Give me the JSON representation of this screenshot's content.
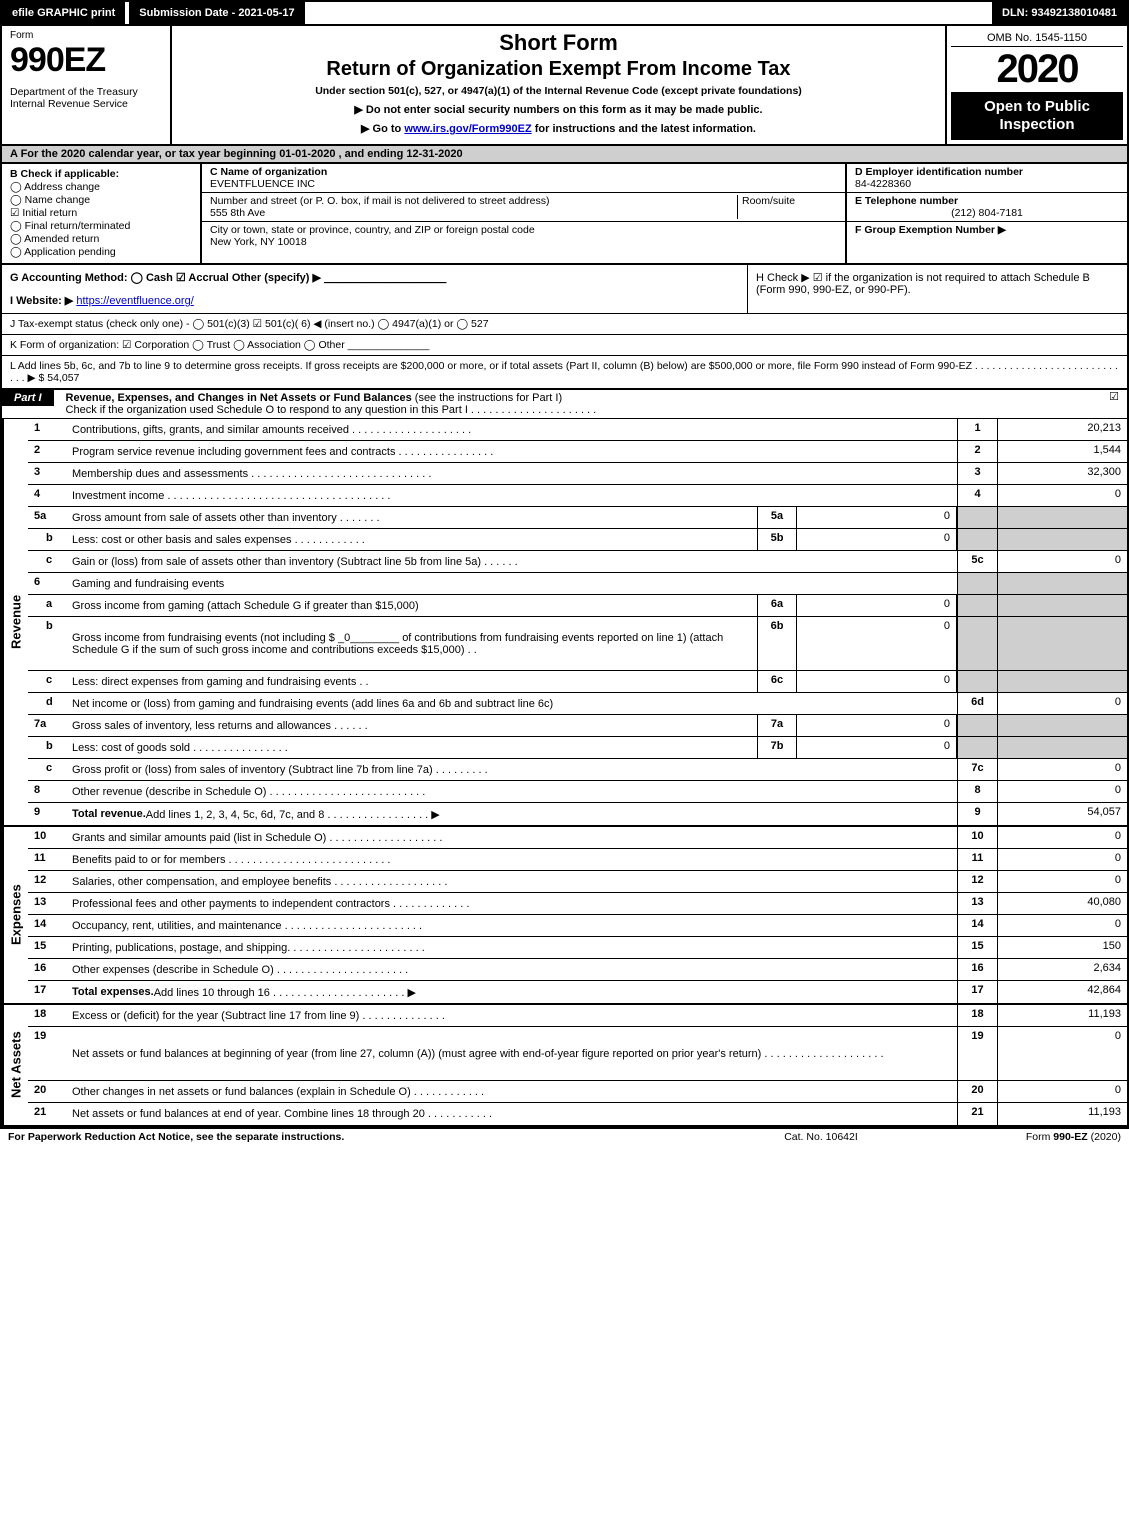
{
  "topbar": {
    "efile": "efile GRAPHIC print",
    "submission": "Submission Date - 2021-05-17",
    "dln": "DLN: 93492138010481"
  },
  "header": {
    "form_word": "Form",
    "form_code": "990EZ",
    "dept1": "Department of the Treasury",
    "dept2": "Internal Revenue Service",
    "title1": "Short Form",
    "title2": "Return of Organization Exempt From Income Tax",
    "under": "Under section 501(c), 527, or 4947(a)(1) of the Internal Revenue Code (except private foundations)",
    "warn": "▶ Do not enter social security numbers on this form as it may be made public.",
    "goto_pre": "▶ Go to ",
    "goto_link": "www.irs.gov/Form990EZ",
    "goto_post": " for instructions and the latest information.",
    "omb": "OMB No. 1545-1150",
    "year": "2020",
    "open": "Open to Public Inspection"
  },
  "row_a": "A  For the 2020 calendar year, or tax year beginning 01-01-2020 , and ending 12-31-2020",
  "section_b": {
    "label": "B  Check if applicable:",
    "items": [
      "Address change",
      "Name change",
      "Initial return",
      "Final return/terminated",
      "Amended return",
      "Application pending"
    ],
    "checked_index": 2
  },
  "section_c": {
    "name_label": "C Name of organization",
    "name": "EVENTFLUENCE INC",
    "street_label": "Number and street (or P. O. box, if mail is not delivered to street address)",
    "room_label": "Room/suite",
    "street": "555 8th Ave",
    "city_label": "City or town, state or province, country, and ZIP or foreign postal code",
    "city": "New York, NY  10018"
  },
  "section_d": {
    "ein_label": "D Employer identification number",
    "ein": "84-4228360",
    "tel_label": "E Telephone number",
    "tel": "(212) 804-7181",
    "grp_label": "F Group Exemption Number   ▶"
  },
  "row_g": {
    "label": "G Accounting Method:   ◯ Cash   ☑ Accrual   Other (specify) ▶",
    "line": "____________________"
  },
  "row_h": "H   Check ▶  ☑  if the organization is not required to attach Schedule B (Form 990, 990-EZ, or 990-PF).",
  "row_i_label": "I Website: ▶",
  "row_i_link": "https://eventfluence.org/",
  "row_j": "J Tax-exempt status (check only one) -  ◯ 501(c)(3)  ☑ 501(c)( 6) ◀ (insert no.)  ◯ 4947(a)(1) or  ◯ 527",
  "row_k": "K Form of organization:   ☑ Corporation   ◯ Trust   ◯ Association   ◯ Other  ______________",
  "row_l": "L Add lines 5b, 6c, and 7b to line 9 to determine gross receipts. If gross receipts are $200,000 or more, or if total assets (Part II, column (B) below) are $500,000 or more, file Form 990 instead of Form 990-EZ  .  .  .  .  .  .  .  .  .  .  .  .  .  .  .  .  .  .  .  .  .  .  .  .  .  .  .  .   ▶ $ 54,057",
  "part1": {
    "label": "Part I",
    "desc_bold": "Revenue, Expenses, and Changes in Net Assets or Fund Balances",
    "desc_rest": " (see the instructions for Part I)",
    "check_line": "Check if the organization used Schedule O to respond to any question in this Part I .  .  .  .  .  .  .  .  .  .  .  .  .  .  .  .  .  .  .  .  .",
    "checked": "☑"
  },
  "revenue_side": "Revenue",
  "expenses_side": "Expenses",
  "netassets_side": "Net Assets",
  "revenue_rows": [
    {
      "n": "1",
      "desc": "Contributions, gifts, grants, and similar amounts received  .  .  .  .  .  .  .  .  .  .  .  .  .  .  .  .  .  .  .  .",
      "rn": "1",
      "rv": "20,213"
    },
    {
      "n": "2",
      "desc": "Program service revenue including government fees and contracts  .  .  .  .  .  .  .  .  .  .  .  .  .  .  .  .",
      "rn": "2",
      "rv": "1,544"
    },
    {
      "n": "3",
      "desc": "Membership dues and assessments  .  .  .  .  .  .  .  .  .  .  .  .  .  .  .  .  .  .  .  .  .  .  .  .  .  .  .  .  .  .",
      "rn": "3",
      "rv": "32,300"
    },
    {
      "n": "4",
      "desc": "Investment income  .  .  .  .  .  .  .  .  .  .  .  .  .  .  .  .  .  .  .  .  .  .  .  .  .  .  .  .  .  .  .  .  .  .  .  .  .",
      "rn": "4",
      "rv": "0"
    },
    {
      "n": "5a",
      "desc": "Gross amount from sale of assets other than inventory  .  .  .  .  .  .  .",
      "mn": "5a",
      "mv": "0",
      "grey_right": true
    },
    {
      "n": "b",
      "sub": true,
      "desc": "Less: cost or other basis and sales expenses  .  .  .  .  .  .  .  .  .  .  .  .",
      "mn": "5b",
      "mv": "0",
      "grey_right": true
    },
    {
      "n": "c",
      "sub": true,
      "desc": "Gain or (loss) from sale of assets other than inventory (Subtract line 5b from line 5a)  .  .  .  .  .  .",
      "rn": "5c",
      "rv": "0"
    },
    {
      "n": "6",
      "desc": "Gaming and fundraising events",
      "grey_right": true,
      "no_right_num": true
    },
    {
      "n": "a",
      "sub": true,
      "desc": "Gross income from gaming (attach Schedule G if greater than $15,000)",
      "mn": "6a",
      "mv": "0",
      "grey_right": true
    },
    {
      "n": "b",
      "sub": true,
      "desc": "Gross income from fundraising events (not including $ _0________ of contributions from fundraising events reported on line 1) (attach Schedule G if the sum of such gross income and contributions exceeds $15,000)     .  .",
      "mn": "6b",
      "mv": "0",
      "grey_right": true,
      "tall": true
    },
    {
      "n": "c",
      "sub": true,
      "desc": "Less: direct expenses from gaming and fundraising events         .  .",
      "mn": "6c",
      "mv": "0",
      "grey_right": true
    },
    {
      "n": "d",
      "sub": true,
      "desc": "Net income or (loss) from gaming and fundraising events (add lines 6a and 6b and subtract line 6c)",
      "rn": "6d",
      "rv": "0"
    },
    {
      "n": "7a",
      "desc": "Gross sales of inventory, less returns and allowances  .  .  .  .  .  .",
      "mn": "7a",
      "mv": "0",
      "grey_right": true
    },
    {
      "n": "b",
      "sub": true,
      "desc": "Less: cost of goods sold        .  .  .  .  .  .  .  .  .  .  .  .  .  .  .  .",
      "mn": "7b",
      "mv": "0",
      "grey_right": true
    },
    {
      "n": "c",
      "sub": true,
      "desc": "Gross profit or (loss) from sales of inventory (Subtract line 7b from line 7a)  .  .  .  .  .  .  .  .  .",
      "rn": "7c",
      "rv": "0"
    },
    {
      "n": "8",
      "desc": "Other revenue (describe in Schedule O)  .  .  .  .  .  .  .  .  .  .  .  .  .  .  .  .  .  .  .  .  .  .  .  .  .  .",
      "rn": "8",
      "rv": "0"
    },
    {
      "n": "9",
      "desc_bold": "Total revenue.",
      "desc": " Add lines 1, 2, 3, 4, 5c, 6d, 7c, and 8   .  .  .  .  .  .  .  .  .  .  .  .  .  .  .  .  .  ▶",
      "rn": "9",
      "rv": "54,057"
    }
  ],
  "expense_rows": [
    {
      "n": "10",
      "desc": "Grants and similar amounts paid (list in Schedule O)  .  .  .  .  .  .  .  .  .  .  .  .  .  .  .  .  .  .  .",
      "rn": "10",
      "rv": "0"
    },
    {
      "n": "11",
      "desc": "Benefits paid to or for members      .  .  .  .  .  .  .  .  .  .  .  .  .  .  .  .  .  .  .  .  .  .  .  .  .  .  .",
      "rn": "11",
      "rv": "0"
    },
    {
      "n": "12",
      "desc": "Salaries, other compensation, and employee benefits  .  .  .  .  .  .  .  .  .  .  .  .  .  .  .  .  .  .  .",
      "rn": "12",
      "rv": "0"
    },
    {
      "n": "13",
      "desc": "Professional fees and other payments to independent contractors  .  .  .  .  .  .  .  .  .  .  .  .  .",
      "rn": "13",
      "rv": "40,080"
    },
    {
      "n": "14",
      "desc": "Occupancy, rent, utilities, and maintenance  .  .  .  .  .  .  .  .  .  .  .  .  .  .  .  .  .  .  .  .  .  .  .",
      "rn": "14",
      "rv": "0"
    },
    {
      "n": "15",
      "desc": "Printing, publications, postage, and shipping.  .  .  .  .  .  .  .  .  .  .  .  .  .  .  .  .  .  .  .  .  .  .",
      "rn": "15",
      "rv": "150"
    },
    {
      "n": "16",
      "desc": "Other expenses (describe in Schedule O)      .  .  .  .  .  .  .  .  .  .  .  .  .  .  .  .  .  .  .  .  .  .",
      "rn": "16",
      "rv": "2,634"
    },
    {
      "n": "17",
      "desc_bold": "Total expenses.",
      "desc": " Add lines 10 through 16     .  .  .  .  .  .  .  .  .  .  .  .  .  .  .  .  .  .  .  .  .  .  ▶",
      "rn": "17",
      "rv": "42,864"
    }
  ],
  "net_rows": [
    {
      "n": "18",
      "desc": "Excess or (deficit) for the year (Subtract line 17 from line 9)        .  .  .  .  .  .  .  .  .  .  .  .  .  .",
      "rn": "18",
      "rv": "11,193"
    },
    {
      "n": "19",
      "desc": "Net assets or fund balances at beginning of year (from line 27, column (A)) (must agree with end-of-year figure reported on prior year's return)  .  .  .  .  .  .  .  .  .  .  .  .  .  .  .  .  .  .  .  .",
      "rn": "19",
      "rv": "0",
      "tall": true,
      "grey_right_top": true
    },
    {
      "n": "20",
      "desc": "Other changes in net assets or fund balances (explain in Schedule O)  .  .  .  .  .  .  .  .  .  .  .  .",
      "rn": "20",
      "rv": "0"
    },
    {
      "n": "21",
      "desc": "Net assets or fund balances at end of year. Combine lines 18 through 20  .  .  .  .  .  .  .  .  .  .  .",
      "rn": "21",
      "rv": "11,193"
    }
  ],
  "footer": {
    "left": "For Paperwork Reduction Act Notice, see the separate instructions.",
    "center": "Cat. No. 10642I",
    "right": "Form 990-EZ (2020)"
  }
}
